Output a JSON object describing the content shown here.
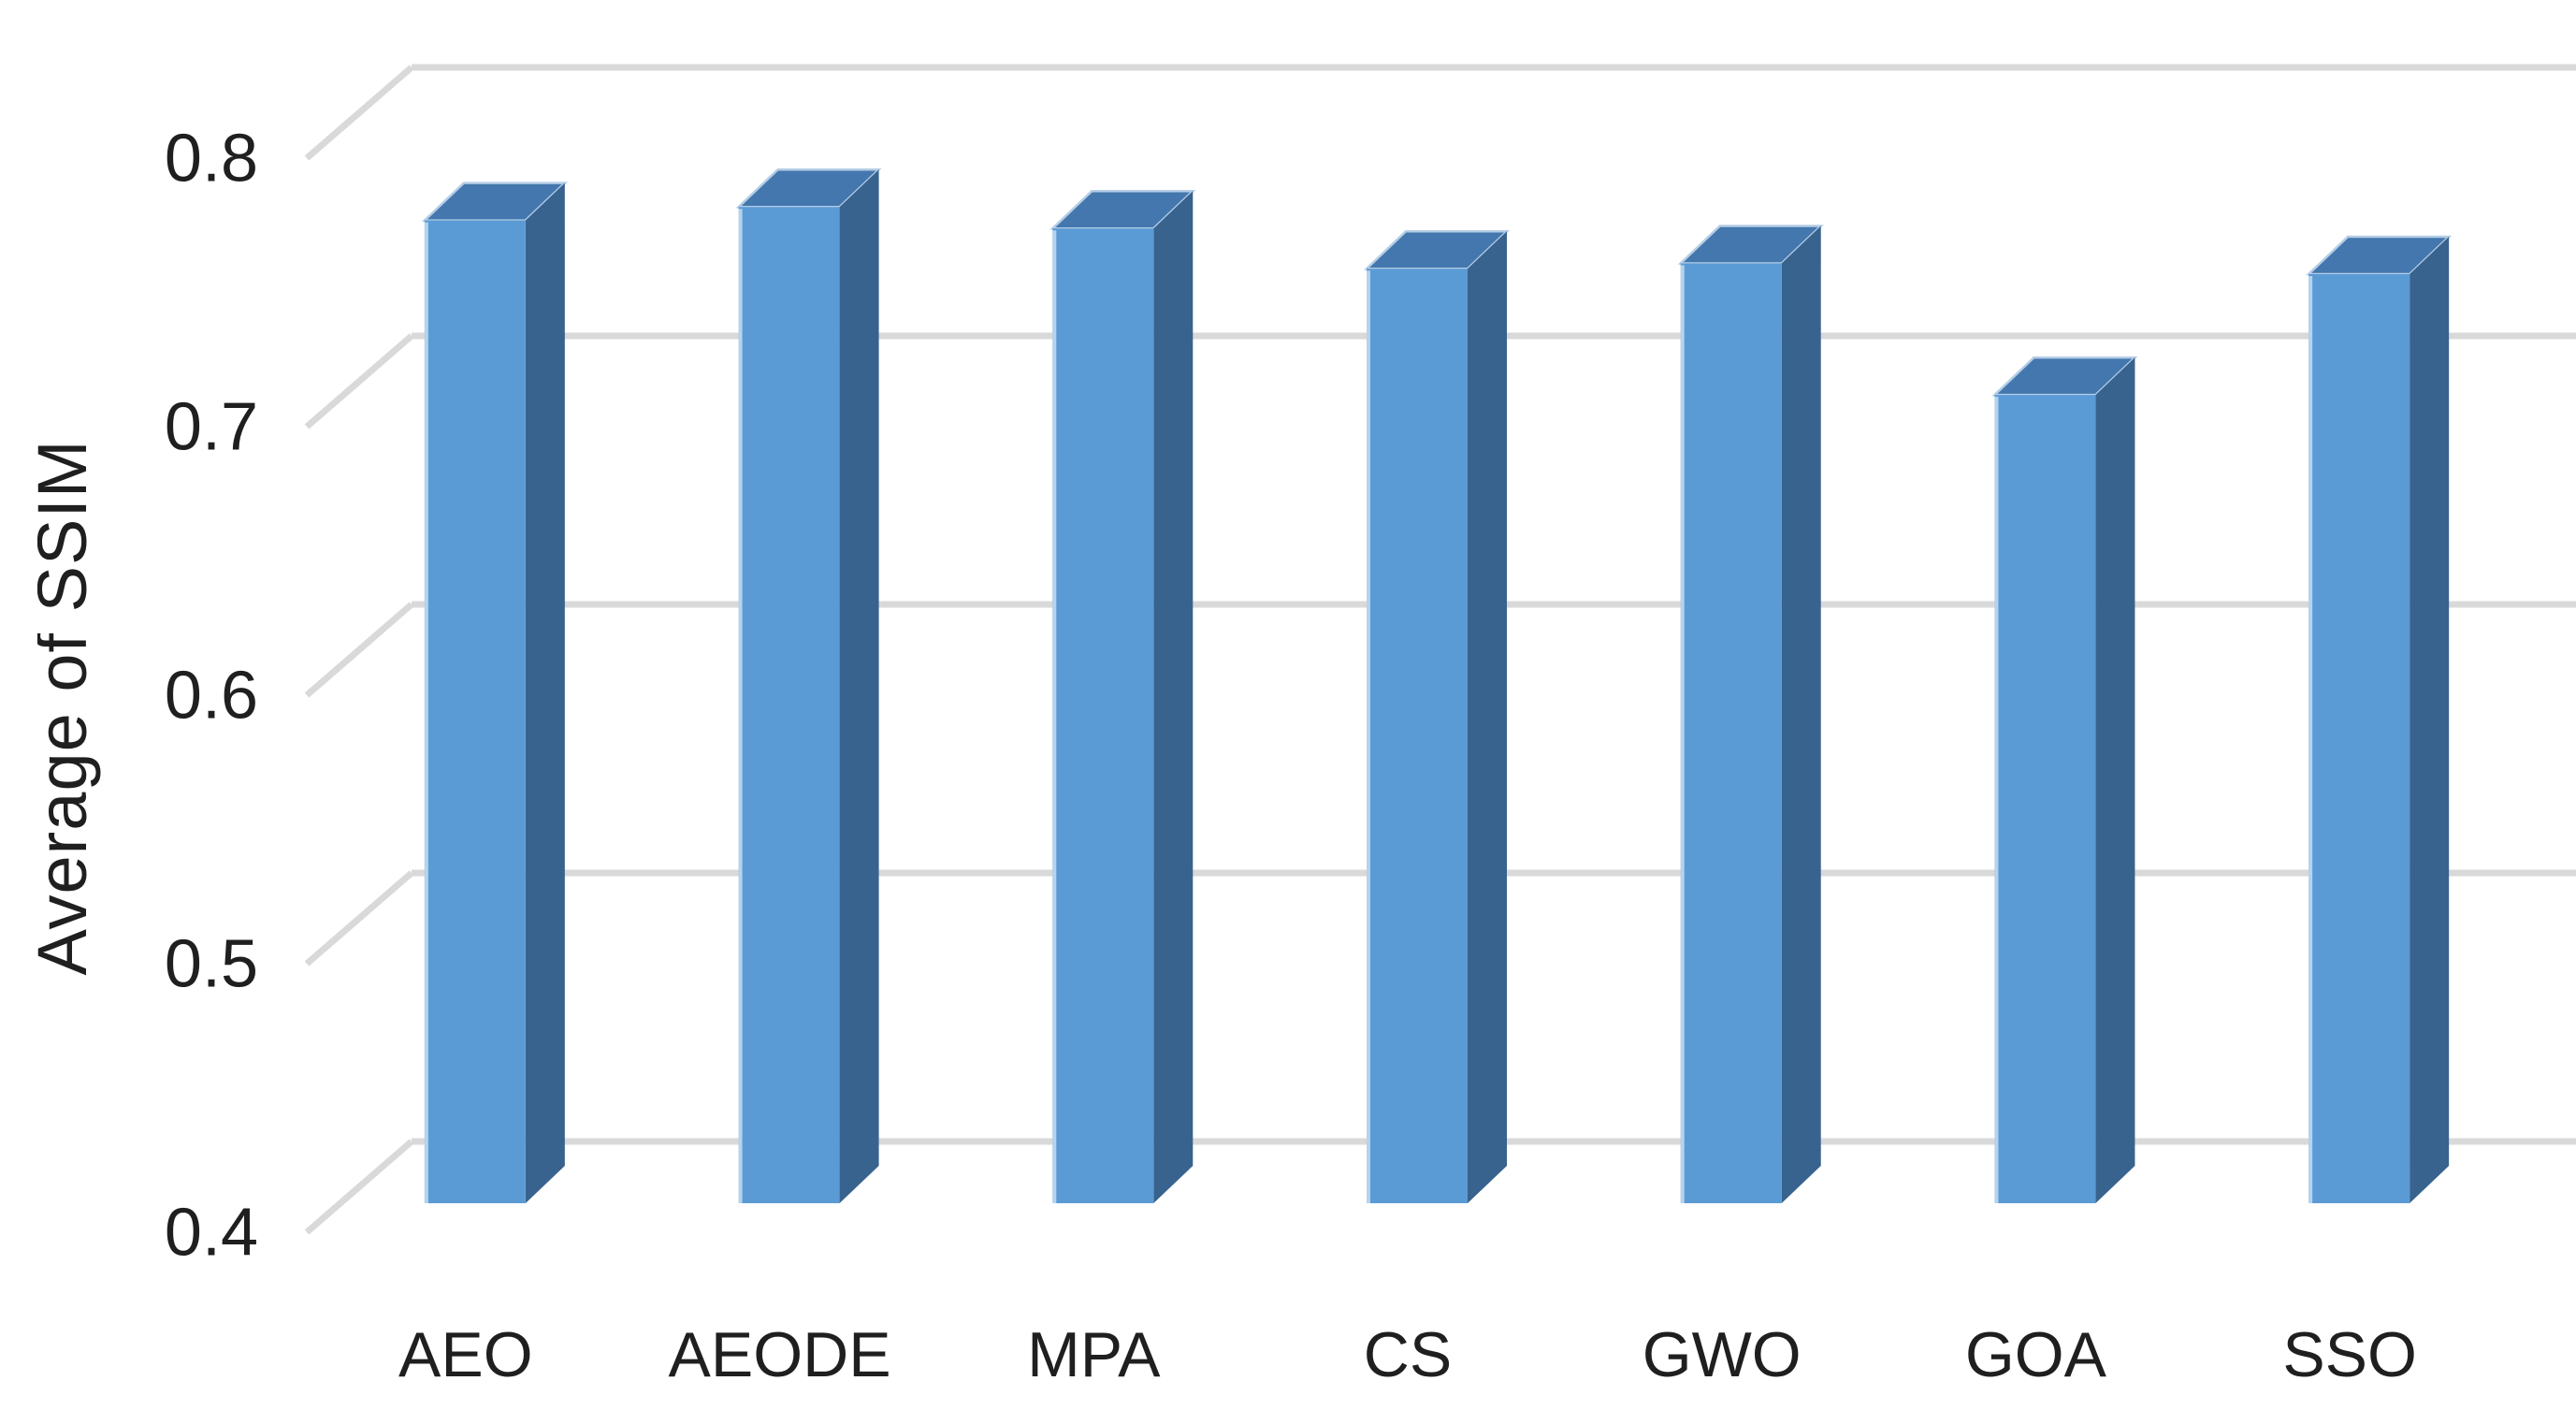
{
  "chart_data": {
    "type": "bar",
    "style": "3d-column",
    "title": "",
    "xlabel": "",
    "ylabel": "Average of SSIM",
    "categories": [
      "AEO",
      "AEODE",
      "MPA",
      "CS",
      "GWO",
      "GOA",
      "SSO"
    ],
    "series": [
      {
        "name": "Average of SSIM",
        "values": [
          0.766,
          0.771,
          0.763,
          0.748,
          0.75,
          0.701,
          0.746
        ]
      }
    ],
    "yticks": [
      0.8,
      0.7,
      0.6,
      0.5,
      0.4
    ],
    "ytick_labels": [
      "0.8",
      "0.7",
      "0.6",
      "0.5",
      "0.4"
    ],
    "ylim": [
      0.4,
      0.82
    ],
    "grid": true,
    "legend": false,
    "colors": {
      "bar_front": "#5B9BD5",
      "bar_top": "#4377AD",
      "bar_side": "#38638E",
      "bar_top_highlight": "#B5CDE6",
      "bar_front_highlight": "#DCEBF7",
      "gridline": "#D9D9D9",
      "text": "#1F1F1F",
      "background": "#FFFFFF"
    }
  }
}
